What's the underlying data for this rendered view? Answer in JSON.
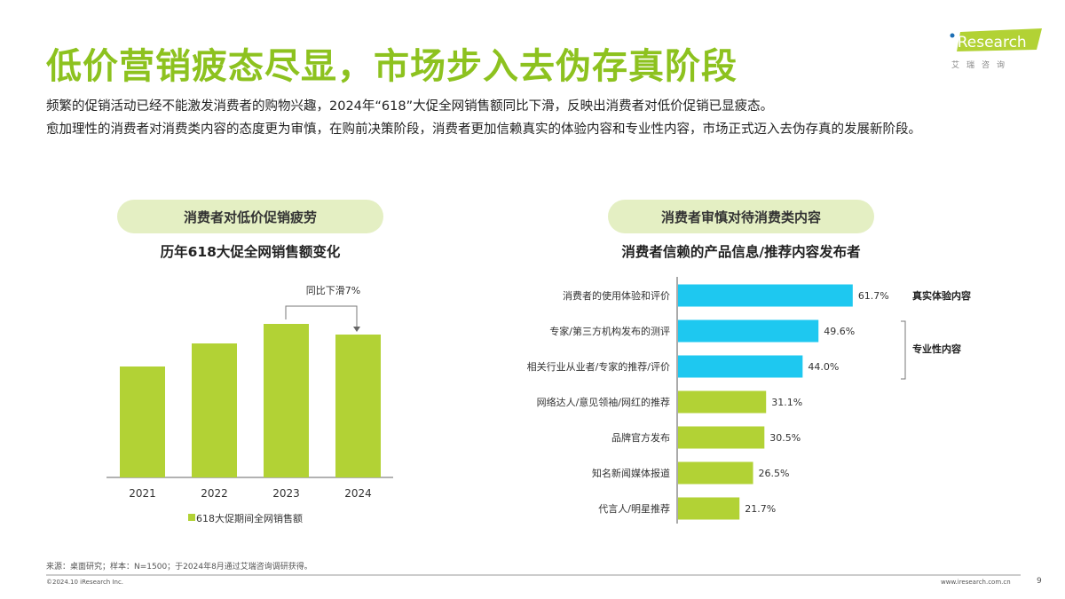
{
  "header": {
    "title": "低价营销疲态尽显，市场步入去伪存真阶段",
    "logo_text": "iResearch",
    "logo_sub": "艾 瑞 咨 询"
  },
  "description": [
    "频繁的促销活动已经不能激发消费者的购物兴趣，2024年“618”大促全网销售额同比下滑，反映出消费者对低价促销已显疲态。",
    "愈加理性的消费者对消费类内容的态度更为审慎，在购前决策阶段，消费者更加信赖真实的体验内容和专业性内容，市场正式迈入去伪存真的发展新阶段。"
  ],
  "left": {
    "pill": "消费者对低价促销疲劳",
    "subtitle": "历年618大促全网销售额变化"
  },
  "right": {
    "pill": "消费者审慎对待消费类内容",
    "subtitle": "消费者信赖的产品信息/推荐内容发布者"
  },
  "colors": {
    "accent": "#8dc21f",
    "green_bar": "#b2d235",
    "blue_bar": "#1ec8f0",
    "pill_bg": "#e4efc3"
  },
  "chart_data": [
    {
      "type": "bar",
      "categories": [
        "2021",
        "2022",
        "2023",
        "2024"
      ],
      "values": [
        125,
        151,
        173,
        161
      ],
      "legend": "618大促期间全网销售额",
      "annotation": "同比下滑7%",
      "legend_placement": "bottom",
      "grid": false
    },
    {
      "type": "bar",
      "orientation": "horizontal",
      "categories": [
        "消费者的使用体验和评价",
        "专家/第三方机构发布的测评",
        "相关行业从业者/专家的推荐/评价",
        "网络达人/意见领袖/网红的推荐",
        "品牌官方发布",
        "知名新闻媒体报道",
        "代言人/明星推荐"
      ],
      "values": [
        61.7,
        49.6,
        44.0,
        31.1,
        30.5,
        26.5,
        21.7
      ],
      "labels": [
        "61.7%",
        "49.6%",
        "44.0%",
        "31.1%",
        "30.5%",
        "26.5%",
        "21.7%"
      ],
      "highlight": [
        true,
        true,
        true,
        false,
        false,
        false,
        false
      ],
      "groups": [
        {
          "label": "真实体验内容"
        },
        {
          "label": "专业性内容"
        }
      ],
      "grid": false
    }
  ],
  "footer": {
    "source": "来源：桌面研究；样本：N=1500；于2024年8月通过艾瑞咨询调研获得。",
    "copyright": "©2024.10 iResearch Inc.",
    "url": "www.iresearch.com.cn",
    "page": "9"
  }
}
